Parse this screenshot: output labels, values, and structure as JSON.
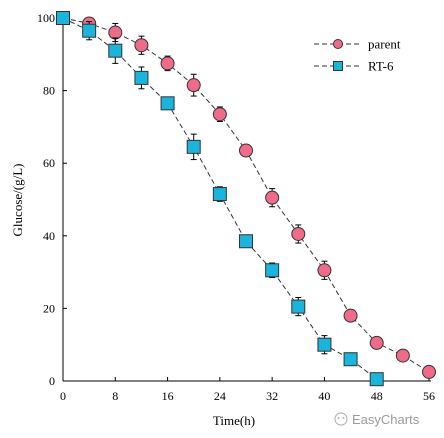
{
  "chart_data": {
    "type": "line",
    "xlabel": "Time(h)",
    "ylabel": "Glucose/(g/L)",
    "xlim": [
      0,
      56
    ],
    "ylim": [
      0,
      100
    ],
    "xticks": [
      0,
      8,
      16,
      24,
      32,
      40,
      48,
      56
    ],
    "yticks": [
      0,
      20,
      40,
      60,
      80,
      100
    ],
    "grid": false,
    "legend_position": "top-right",
    "series": [
      {
        "name": "parent",
        "marker": "circle",
        "color": "#f06b8a",
        "x": [
          0,
          4,
          8,
          12,
          16,
          20,
          24,
          28,
          32,
          36,
          40,
          44,
          48,
          52,
          56
        ],
        "y": [
          100,
          98.5,
          96,
          92.5,
          87.5,
          81.5,
          73.5,
          63.5,
          50.5,
          40.5,
          30.5,
          18,
          10.5,
          7,
          2.5
        ],
        "err": [
          0,
          1.5,
          2.5,
          2.5,
          2,
          3,
          2,
          1.5,
          2.5,
          2.5,
          2.5,
          1.5,
          1.5,
          1,
          1
        ]
      },
      {
        "name": "RT-6",
        "marker": "square",
        "color": "#1ab4dc",
        "x": [
          0,
          4,
          8,
          12,
          16,
          20,
          24,
          28,
          32,
          36,
          40,
          44,
          48
        ],
        "y": [
          100,
          96.5,
          91,
          83.5,
          76.5,
          64.5,
          51.5,
          38.5,
          30.5,
          20.5,
          10,
          6,
          0.5
        ],
        "err": [
          0,
          2.5,
          3.5,
          3,
          1.5,
          3.5,
          2,
          1.5,
          2,
          2.5,
          2.5,
          1.5,
          0.5
        ]
      }
    ]
  },
  "watermark": "EasyCharts"
}
